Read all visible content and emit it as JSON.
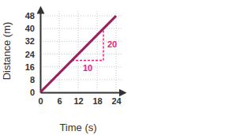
{
  "chart_data": {
    "type": "line",
    "x_label": "Time (s)",
    "y_label": "Distance (m)",
    "x": [
      0,
      24
    ],
    "values": [
      0,
      48
    ],
    "color": "#9c1f5e",
    "xlim": [
      0,
      26
    ],
    "xticks": [
      0,
      6,
      12,
      18,
      24
    ],
    "ylim": [
      0,
      52
    ],
    "yticks": [
      0,
      8,
      16,
      24,
      32,
      40,
      48
    ],
    "grid": true,
    "annotations": [
      {
        "text": "10",
        "x": [
          10,
          20
        ],
        "y": [
          20,
          20
        ],
        "color": "#e8237c"
      },
      {
        "text": "20",
        "x": [
          20,
          20
        ],
        "y": [
          20,
          40
        ],
        "color": "#e8237c"
      }
    ]
  }
}
